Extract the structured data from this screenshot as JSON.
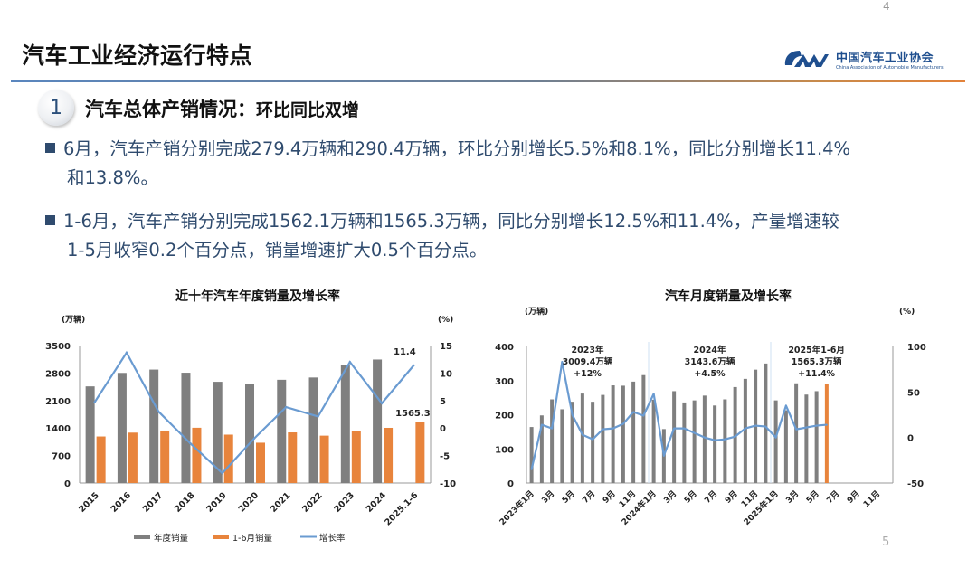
{
  "page": {
    "page_number_top": "4",
    "page_number_bottom": "5",
    "title": "汽车工业经济运行特点",
    "logo": {
      "cn": "中国汽车工业协会",
      "en": "China Association of Automobile Manufacturers",
      "mark": "CAM"
    },
    "section": {
      "number": "1",
      "title": "汽车总体产销情况：",
      "subtitle": "环比同比双增"
    },
    "bullets": [
      {
        "line1": "6月，汽车产销分别完成279.4万辆和290.4万辆，环比分别增长5.5%和8.1%，同比分别增长11.4%",
        "line2": "和13.8%。"
      },
      {
        "line1": "1-6月，汽车产销分别完成1562.1万辆和1565.3万辆，同比分别增长12.5%和11.4%，产量增速较",
        "line2": "1-5月收窄0.2个百分点，销量增速扩大0.5个百分点。"
      }
    ],
    "colors": {
      "gray_bar": "#7f7f7f",
      "orange_bar": "#e8843c",
      "line": "#6a9bd1",
      "text_blue": "#2f4b6e"
    }
  },
  "chart_data": [
    {
      "type": "bar",
      "title": "近十年汽车年度销量及增长率",
      "ylabel": "(万辆)",
      "y2label": "(%)",
      "ylim": [
        0,
        3500
      ],
      "y2lim": [
        -10,
        15
      ],
      "yticks": [
        "0",
        "700",
        "1400",
        "2100",
        "2800",
        "3500"
      ],
      "y2ticks": [
        "-10",
        "-5",
        "0",
        "5",
        "10",
        "15"
      ],
      "categories": [
        "2015",
        "2016",
        "2017",
        "2018",
        "2019",
        "2020",
        "2021",
        "2022",
        "2023",
        "2024",
        "2025.1-6"
      ],
      "series": [
        {
          "name": "年度销量",
          "type": "bar",
          "axis": "left",
          "values": [
            2460,
            2803,
            2888,
            2808,
            2577,
            2531,
            2628,
            2686,
            3009,
            3144,
            null
          ]
        },
        {
          "name": "1-6月销量",
          "type": "bar",
          "axis": "left",
          "values": [
            1185,
            1283,
            1336,
            1407,
            1232,
            1026,
            1289,
            1206,
            1324,
            1405,
            1565.3
          ]
        },
        {
          "name": "增长率",
          "type": "line",
          "axis": "right",
          "values": [
            4.7,
            13.7,
            3.0,
            -2.8,
            -8.2,
            -1.9,
            3.8,
            2.1,
            12.0,
            4.5,
            11.4
          ]
        }
      ],
      "annotations": [
        "11.4",
        "1565.3"
      ],
      "legend": "bottom",
      "grid": false
    },
    {
      "type": "bar",
      "title": "汽车月度销量及增长率",
      "ylabel": "(万辆)",
      "y2label": "(%)",
      "ylim": [
        0,
        400
      ],
      "y2lim": [
        -50,
        100
      ],
      "yticks": [
        "0",
        "100",
        "200",
        "300",
        "400"
      ],
      "y2ticks": [
        "-50",
        "0",
        "50",
        "100"
      ],
      "months_count": 36,
      "xtick_labels": [
        "2023年1月",
        "3月",
        "5月",
        "7月",
        "9月",
        "11月",
        "2024年1月",
        "3月",
        "5月",
        "7月",
        "9月",
        "11月",
        "2025年1月",
        "3月",
        "5月",
        "7月",
        "9月",
        "11月"
      ],
      "series": [
        {
          "name": "月度销量",
          "type": "bar",
          "axis": "left",
          "values": [
            164,
            198,
            245,
            216,
            238,
            262,
            238,
            258,
            286,
            285,
            297,
            316,
            244,
            158,
            269,
            236,
            242,
            256,
            227,
            245,
            281,
            305,
            332,
            350,
            242,
            213,
            292,
            259,
            269,
            290,
            null,
            null,
            null,
            null,
            null,
            null
          ],
          "highlight_index": 29
        },
        {
          "name": "增长率",
          "type": "line",
          "axis": "right",
          "values": [
            -35,
            14,
            10,
            83,
            25,
            3,
            -2,
            9,
            10,
            15,
            28,
            24,
            48,
            -20,
            10,
            10,
            5,
            0,
            -3,
            -2,
            1,
            10,
            13,
            12,
            0,
            35,
            9,
            11,
            13,
            14,
            null,
            null,
            null,
            null,
            null,
            null
          ]
        }
      ],
      "annotations": [
        {
          "line1": "2023年",
          "line2": "3009.4万辆",
          "line3": "+12%"
        },
        {
          "line1": "2024年",
          "line2": "3143.6万辆",
          "line3": "+4.5%"
        },
        {
          "line1": "2025年1-6月",
          "line2": "1565.3万辆",
          "line3": "+11.4%"
        }
      ],
      "grid": false
    }
  ]
}
